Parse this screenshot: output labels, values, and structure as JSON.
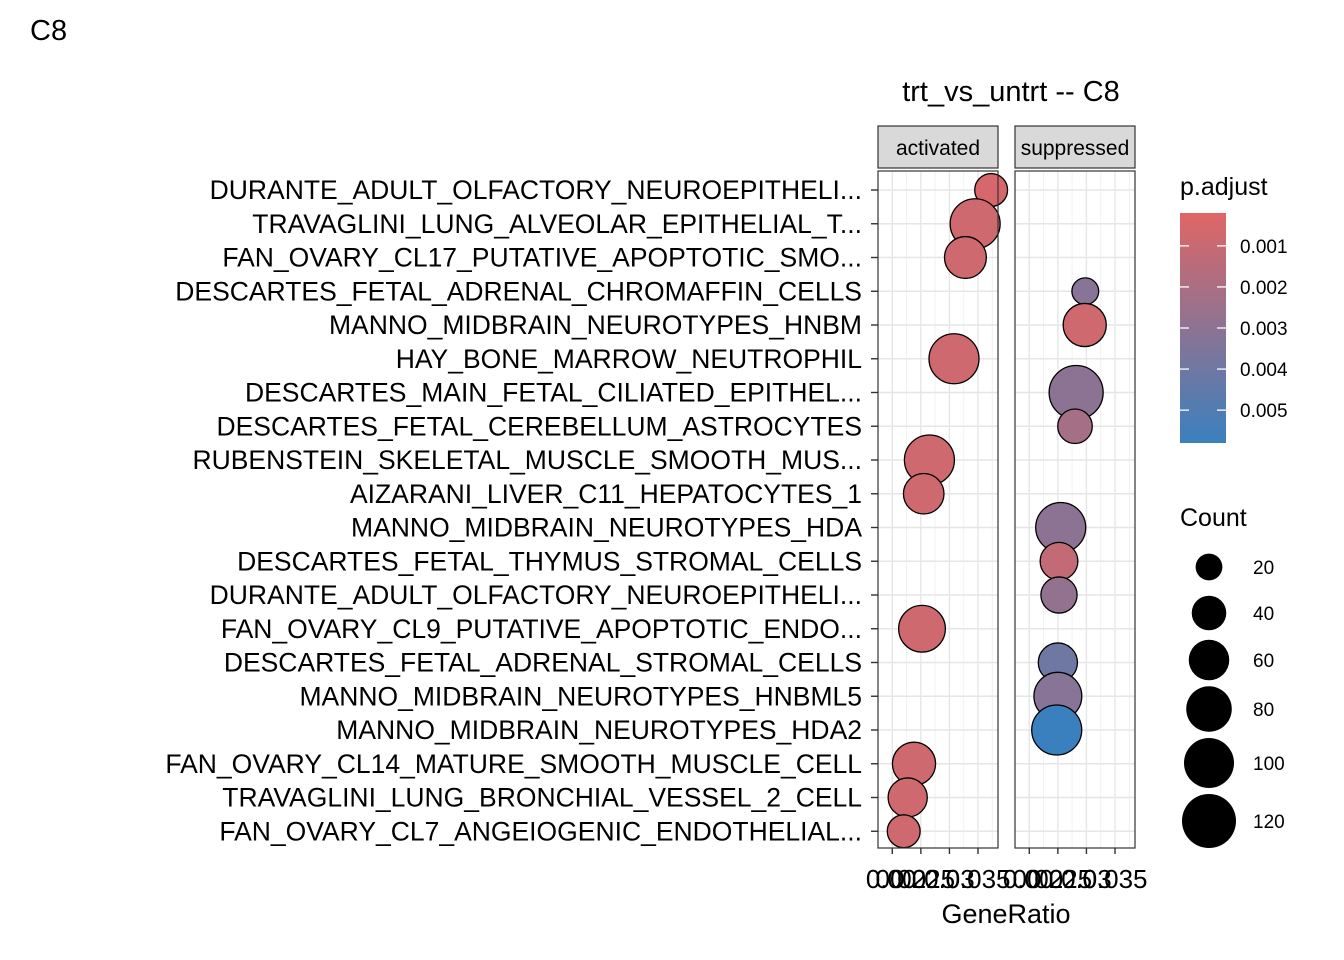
{
  "chart_data": {
    "type": "scatter",
    "tag": "C8",
    "title": "trt_vs_untrt -- C8",
    "xlabel": "GeneRatio",
    "ylabel": "",
    "facets": [
      "activated",
      "suppressed"
    ],
    "x_ticks": [
      "0.00",
      "0.02",
      "0.025",
      "0.03",
      "0.035"
    ],
    "xlim": [
      0.0175,
      0.0385
    ],
    "grid": true,
    "legend_position": "right",
    "color_legend": {
      "title": "p.adjust",
      "low_color": "#E06666",
      "high_color": "#3A80BF",
      "range": [
        0.0002,
        0.0058
      ],
      "ticks": [
        0.001,
        0.002,
        0.003,
        0.004,
        0.005
      ],
      "tick_labels": [
        "0.001",
        "0.002",
        "0.003",
        "0.004",
        "0.005"
      ]
    },
    "size_legend": {
      "title": "Count",
      "values": [
        20,
        40,
        60,
        80,
        100,
        120
      ]
    },
    "categories": [
      "DURANTE_ADULT_OLFACTORY_NEUROEPITHELI...",
      "TRAVAGLINI_LUNG_ALVEOLAR_EPITHELIAL_T...",
      "FAN_OVARY_CL17_PUTATIVE_APOPTOTIC_SMO...",
      "DESCARTES_FETAL_ADRENAL_CHROMAFFIN_CELLS",
      "MANNO_MIDBRAIN_NEUROTYPES_HNBM",
      "HAY_BONE_MARROW_NEUTROPHIL",
      "DESCARTES_MAIN_FETAL_CILIATED_EPITHEL...",
      "DESCARTES_FETAL_CEREBELLUM_ASTROCYTES",
      "RUBENSTEIN_SKELETAL_MUSCLE_SMOOTH_MUS...",
      "AIZARANI_LIVER_C11_HEPATOCYTES_1",
      "MANNO_MIDBRAIN_NEUROTYPES_HDA",
      "DESCARTES_FETAL_THYMUS_STROMAL_CELLS",
      "DURANTE_ADULT_OLFACTORY_NEUROEPITHELI...",
      "FAN_OVARY_CL9_PUTATIVE_APOPTOTIC_ENDO...",
      "DESCARTES_FETAL_ADRENAL_STROMAL_CELLS",
      "MANNO_MIDBRAIN_NEUROTYPES_HNBML5",
      "MANNO_MIDBRAIN_NEUROTYPES_HDA2",
      "FAN_OVARY_CL14_MATURE_SMOOTH_MUSCLE_CELL",
      "TRAVAGLINI_LUNG_BRONCHIAL_VESSEL_2_CELL",
      "FAN_OVARY_CL7_ANGEIOGENIC_ENDOTHELIAL..."
    ],
    "points": [
      {
        "category": 0,
        "facet": "activated",
        "x": 0.0373,
        "count": 35,
        "p_adjust": 0.0005
      },
      {
        "category": 1,
        "facet": "activated",
        "x": 0.0345,
        "count": 100,
        "p_adjust": 0.0008
      },
      {
        "category": 2,
        "facet": "activated",
        "x": 0.0328,
        "count": 65,
        "p_adjust": 0.0008
      },
      {
        "category": 5,
        "facet": "activated",
        "x": 0.0308,
        "count": 100,
        "p_adjust": 0.0008
      },
      {
        "category": 8,
        "facet": "activated",
        "x": 0.0265,
        "count": 100,
        "p_adjust": 0.0008
      },
      {
        "category": 9,
        "facet": "activated",
        "x": 0.0255,
        "count": 60,
        "p_adjust": 0.0008
      },
      {
        "category": 13,
        "facet": "activated",
        "x": 0.0252,
        "count": 85,
        "p_adjust": 0.0008
      },
      {
        "category": 17,
        "facet": "activated",
        "x": 0.0238,
        "count": 70,
        "p_adjust": 0.0008
      },
      {
        "category": 18,
        "facet": "activated",
        "x": 0.0227,
        "count": 55,
        "p_adjust": 0.0008
      },
      {
        "category": 19,
        "facet": "activated",
        "x": 0.022,
        "count": 35,
        "p_adjust": 0.0008
      },
      {
        "category": 3,
        "facet": "suppressed",
        "x": 0.0298,
        "count": 20,
        "p_adjust": 0.0032
      },
      {
        "category": 4,
        "facet": "suppressed",
        "x": 0.0297,
        "count": 70,
        "p_adjust": 0.0008
      },
      {
        "category": 6,
        "facet": "suppressed",
        "x": 0.0282,
        "count": 120,
        "p_adjust": 0.003
      },
      {
        "category": 7,
        "facet": "suppressed",
        "x": 0.028,
        "count": 40,
        "p_adjust": 0.0022
      },
      {
        "category": 10,
        "facet": "suppressed",
        "x": 0.0255,
        "count": 100,
        "p_adjust": 0.003
      },
      {
        "category": 11,
        "facet": "suppressed",
        "x": 0.0252,
        "count": 50,
        "p_adjust": 0.0012
      },
      {
        "category": 12,
        "facet": "suppressed",
        "x": 0.0252,
        "count": 45,
        "p_adjust": 0.0028
      },
      {
        "category": 14,
        "facet": "suppressed",
        "x": 0.025,
        "count": 55,
        "p_adjust": 0.004
      },
      {
        "category": 15,
        "facet": "suppressed",
        "x": 0.025,
        "count": 90,
        "p_adjust": 0.0032
      },
      {
        "category": 16,
        "facet": "suppressed",
        "x": 0.0248,
        "count": 100,
        "p_adjust": 0.0058
      }
    ]
  }
}
